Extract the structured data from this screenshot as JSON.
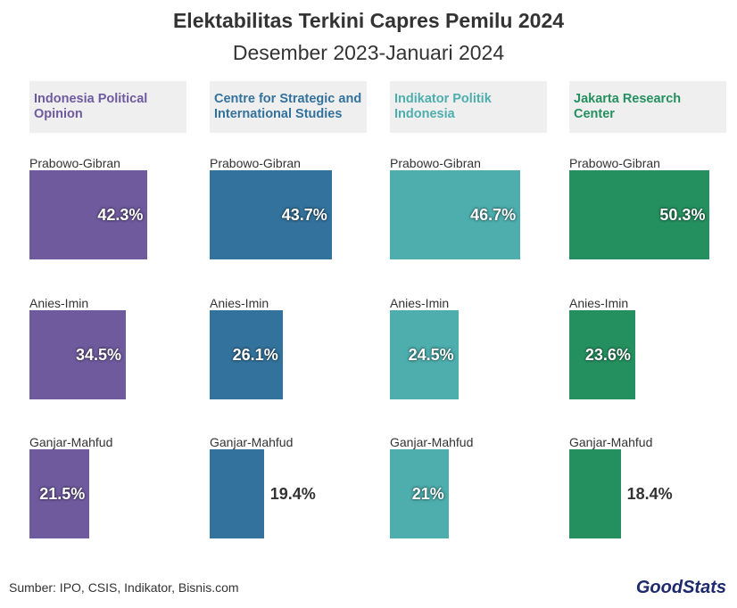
{
  "title": "Elektabilitas Terkini Capres Pemilu 2024",
  "subtitle": "Desember 2023-Januari 2024",
  "source": "Sumber: IPO, CSIS, Indikator, Bisnis.com",
  "logo": "GoodStats",
  "chart_data": [
    {
      "type": "bar",
      "title": "Indonesia Political Opinion",
      "color": "#6f5a9e",
      "categories": [
        "Prabowo-Gibran",
        "Anies-Imin",
        "Ganjar-Mahfud"
      ],
      "values": [
        42.3,
        34.5,
        21.5
      ],
      "value_labels": [
        "42.3%",
        "34.5%",
        "21.5%"
      ]
    },
    {
      "type": "bar",
      "title": "Centre for Strategic and International Studies",
      "color": "#33729c",
      "categories": [
        "Prabowo-Gibran",
        "Anies-Imin",
        "Ganjar-Mahfud"
      ],
      "values": [
        43.7,
        26.1,
        19.4
      ],
      "value_labels": [
        "43.7%",
        "26.1%",
        "19.4%"
      ]
    },
    {
      "type": "bar",
      "title": "Indikator Politik Indonesia",
      "color": "#4daead",
      "categories": [
        "Prabowo-Gibran",
        "Anies-Imin",
        "Ganjar-Mahfud"
      ],
      "values": [
        46.7,
        24.5,
        21
      ],
      "value_labels": [
        "46.7%",
        "24.5%",
        "21%"
      ]
    },
    {
      "type": "bar",
      "title": "Jakarta Research Center",
      "color": "#25905f",
      "categories": [
        "Prabowo-Gibran",
        "Anies-Imin",
        "Ganjar-Mahfud"
      ],
      "values": [
        50.3,
        23.6,
        18.4
      ],
      "value_labels": [
        "50.3%",
        "23.6%",
        "18.4%"
      ]
    }
  ]
}
